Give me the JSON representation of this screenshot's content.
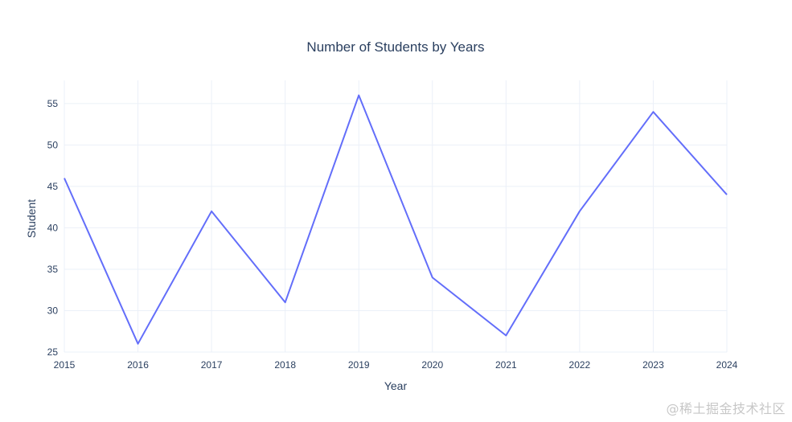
{
  "chart_data": {
    "type": "line",
    "title": "Number of Students by Years",
    "xlabel": "Year",
    "ylabel": "Student",
    "x": [
      2015,
      2016,
      2017,
      2018,
      2019,
      2020,
      2021,
      2022,
      2023,
      2024
    ],
    "series": [
      {
        "values": [
          46,
          26,
          42,
          31,
          56,
          34,
          27,
          42,
          54,
          44
        ],
        "color": "#636efa"
      }
    ],
    "xlim": [
      2015,
      2024
    ],
    "ylim": [
      25,
      57.8
    ],
    "yticks": [
      25,
      30,
      35,
      40,
      45,
      50,
      55
    ],
    "xticks": [
      2015,
      2016,
      2017,
      2018,
      2019,
      2020,
      2021,
      2022,
      2023,
      2024
    ],
    "grid": true,
    "legend": false,
    "colors": {
      "grid": "#ebf0f8",
      "text": "#2a3f5f",
      "background": "#ffffff"
    }
  },
  "watermark": "@稀土掘金技术社区"
}
